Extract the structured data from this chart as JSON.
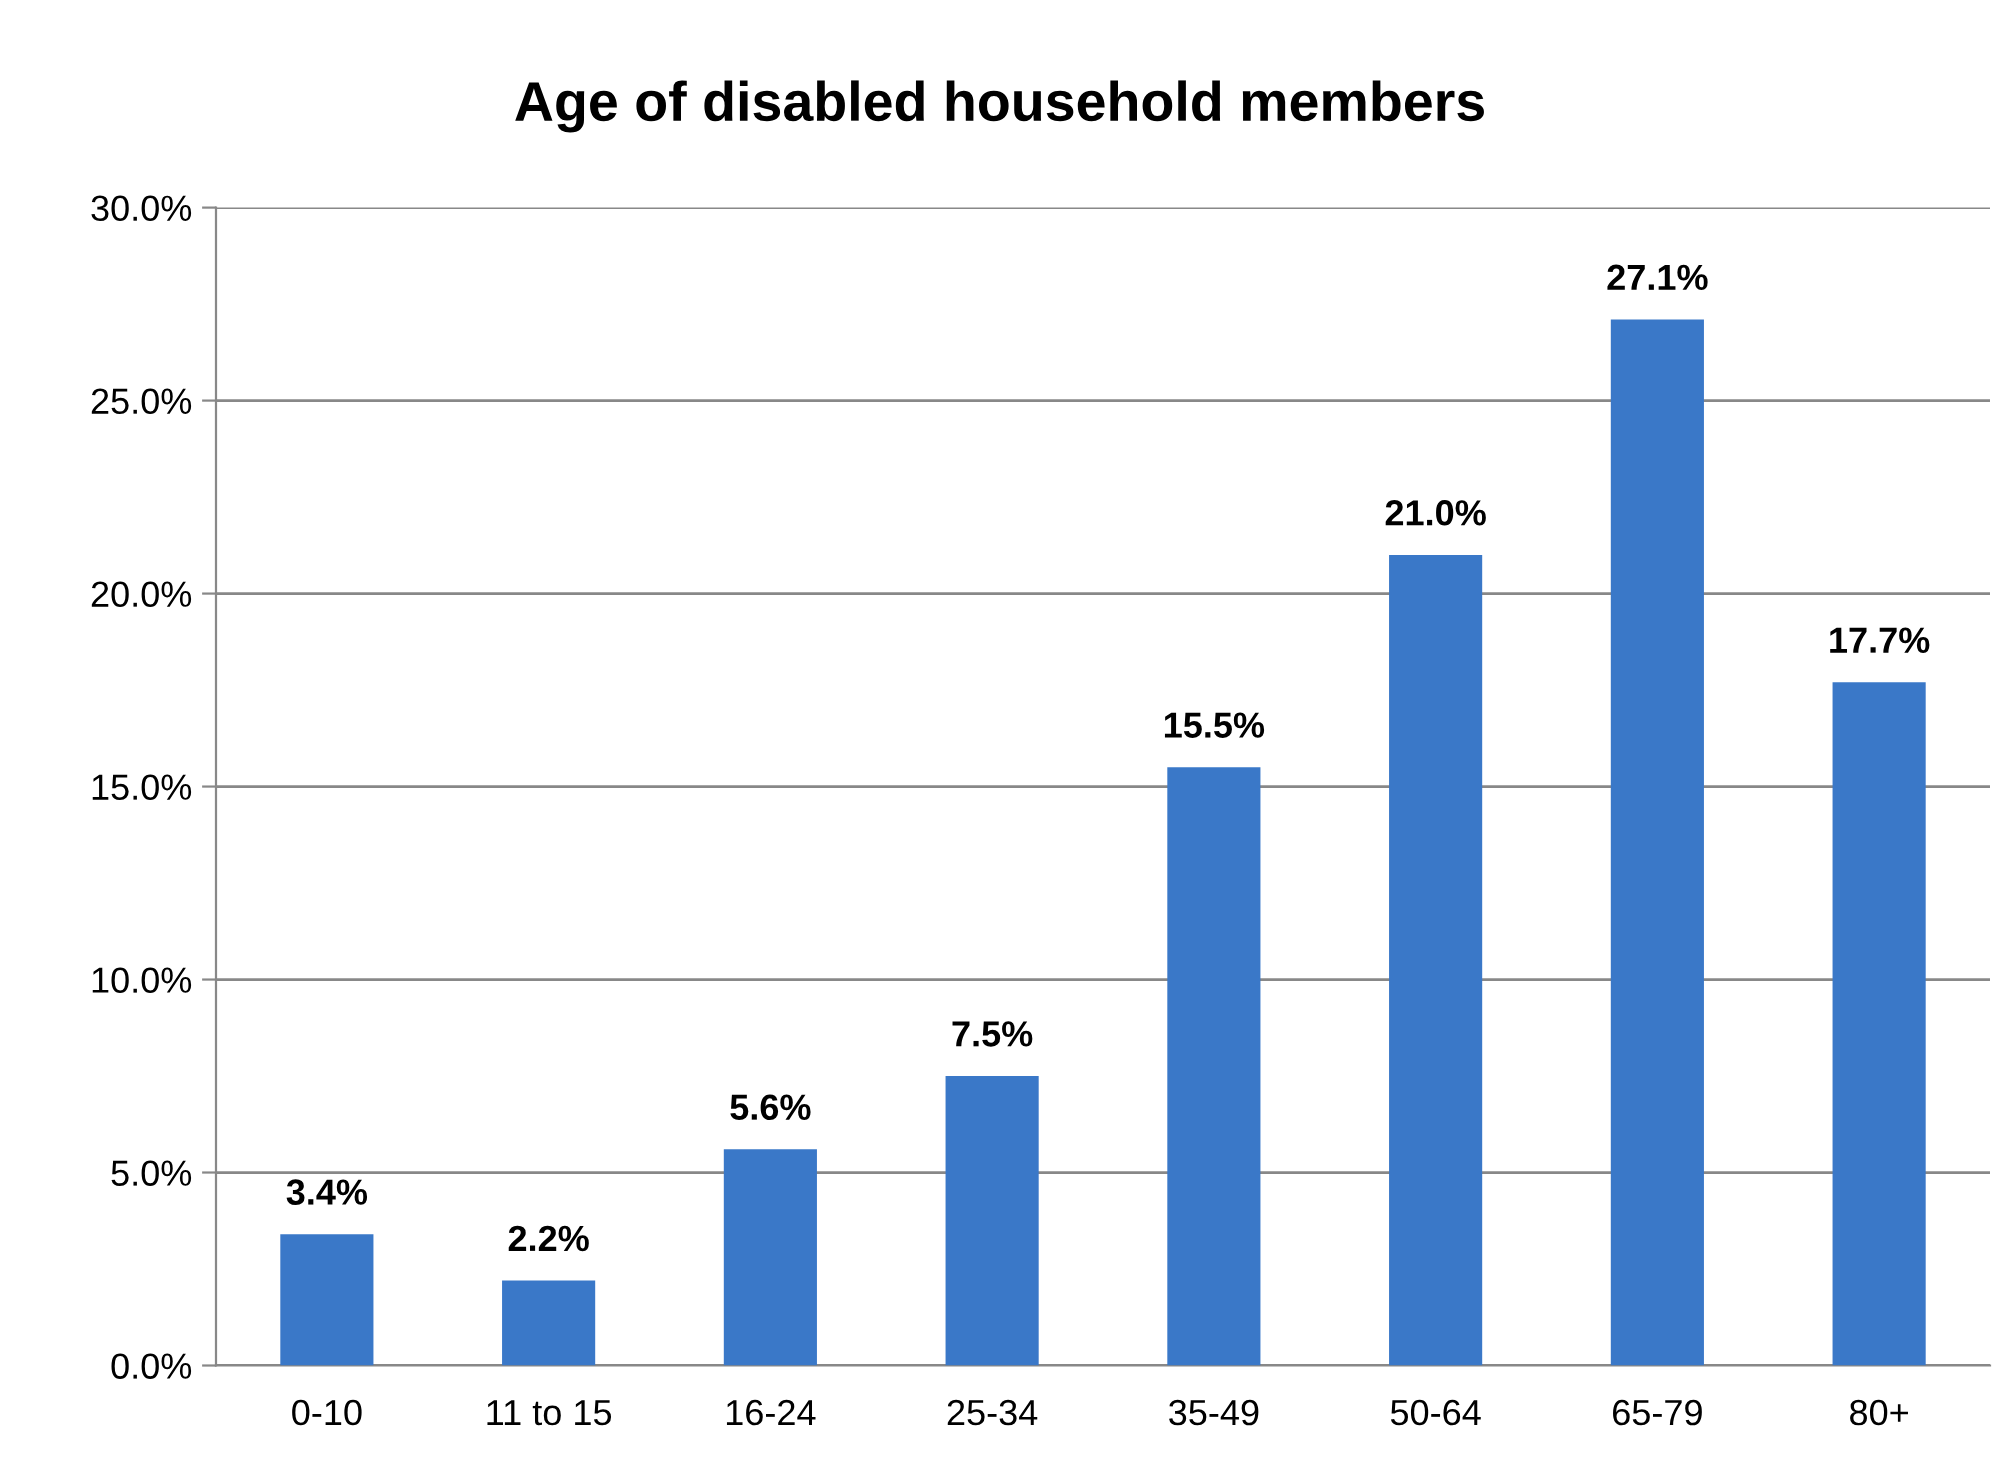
{
  "chart_data": {
    "type": "bar",
    "title": "Age of disabled household members",
    "categories": [
      "0-10",
      "11 to 15",
      "16-24",
      "25-34",
      "35-49",
      "50-64",
      "65-79",
      "80+"
    ],
    "values": [
      3.4,
      2.2,
      5.6,
      7.5,
      15.5,
      21.0,
      27.1,
      17.7
    ],
    "value_labels": [
      "3.4%",
      "2.2%",
      "5.6%",
      "7.5%",
      "15.5%",
      "21.0%",
      "27.1%",
      "17.7%"
    ],
    "color": "#3a78c8",
    "ylim": [
      0,
      30
    ],
    "yticks": [
      {
        "value": 0,
        "label": "0.0%"
      },
      {
        "value": 5,
        "label": "5.0%"
      },
      {
        "value": 10,
        "label": "10.0%"
      },
      {
        "value": 15,
        "label": "15.0%"
      },
      {
        "value": 20,
        "label": "20.0%"
      },
      {
        "value": 25,
        "label": "25.0%"
      },
      {
        "value": 30,
        "label": "30.0%"
      }
    ],
    "grid": "y"
  }
}
